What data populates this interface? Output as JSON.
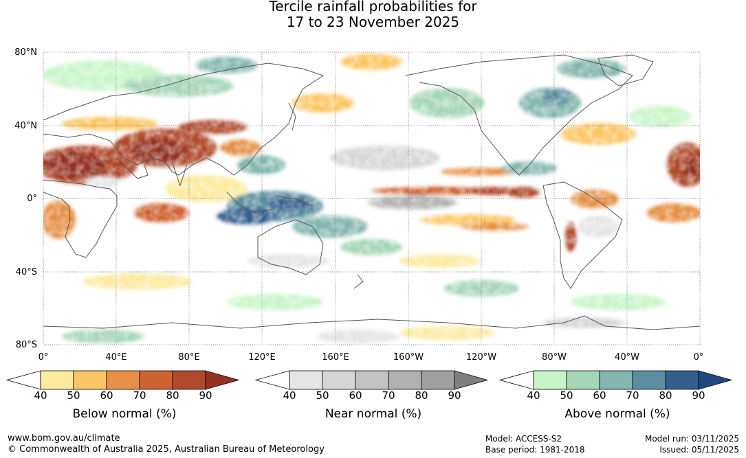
{
  "title": {
    "line1": "Tercile rainfall probabilities for",
    "line2": "17 to 23 November 2025"
  },
  "map": {
    "lat_labels": [
      "80°N",
      "40°N",
      "0°",
      "40°S",
      "80°S"
    ],
    "lon_labels": [
      "0°",
      "40°E",
      "80°E",
      "120°E",
      "160°E",
      "160°W",
      "120°W",
      "80°W",
      "40°W",
      "0°"
    ]
  },
  "colorbars": [
    {
      "name": "below",
      "label": "Below normal (%)",
      "ticks": [
        "40",
        "50",
        "60",
        "70",
        "80",
        "90"
      ],
      "colors": [
        "#ffffff",
        "#fdeba0",
        "#fdc664",
        "#e69145",
        "#cf6232",
        "#b04a2a",
        "#943224"
      ]
    },
    {
      "name": "near",
      "label": "Near normal (%)",
      "ticks": [
        "40",
        "50",
        "60",
        "70",
        "80",
        "90"
      ],
      "colors": [
        "#ffffff",
        "#e5e5e5",
        "#d6d6d6",
        "#c4c4c4",
        "#b1b1b1",
        "#a0a0a0",
        "#7f7f7f"
      ]
    },
    {
      "name": "above",
      "label": "Above normal (%)",
      "ticks": [
        "40",
        "50",
        "60",
        "70",
        "80",
        "90"
      ],
      "colors": [
        "#ffffff",
        "#c8f5c8",
        "#a6d6b8",
        "#82b6ae",
        "#5b8fa0",
        "#345f8d",
        "#1e4a7f"
      ]
    }
  ],
  "footer": {
    "website": "www.bom.gov.au/climate",
    "copyright": "© Commonwealth of Australia 2025, Australian Bureau of Meteorology",
    "model": "Model: ACCESS-S2",
    "base_period": "Base period: 1981-2018",
    "model_run": "Model run: 03/11/2025",
    "issued": "Issued: 05/11/2025"
  }
}
